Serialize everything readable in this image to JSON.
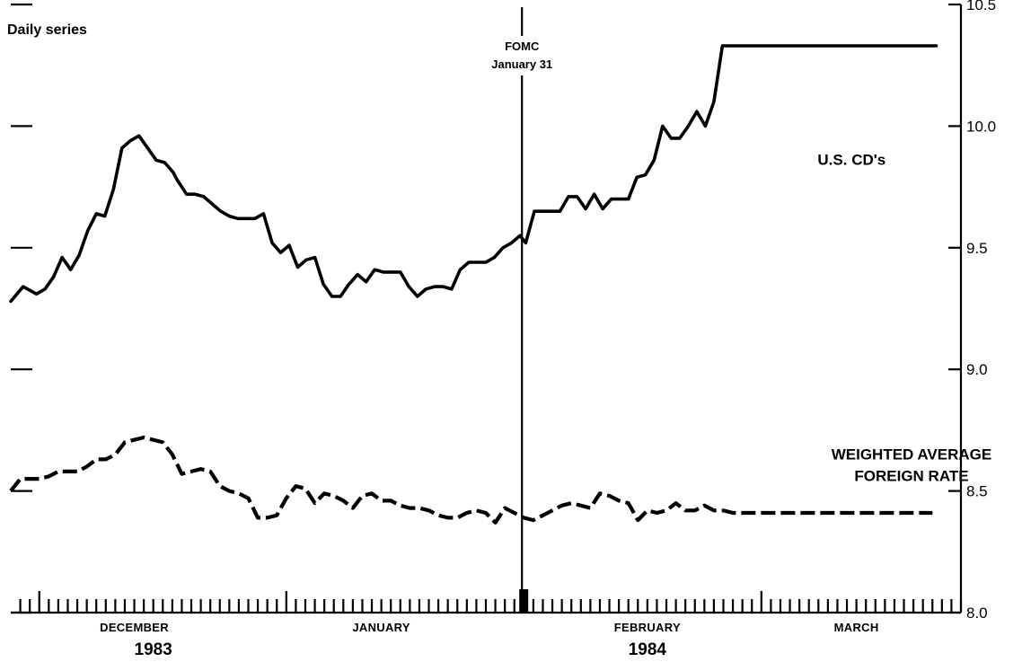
{
  "chart_data": {
    "type": "line",
    "title": "",
    "subtitle": "Daily series",
    "xlabel": "",
    "ylabel": "",
    "ylim": [
      8.0,
      10.5
    ],
    "yticks": [
      8.0,
      8.5,
      9.0,
      9.5,
      10.0,
      10.5
    ],
    "ytick_labels": [
      "8.0",
      "8.5",
      "9.0",
      "9.5",
      "10.0",
      "10.5"
    ],
    "y_axis_side": "right",
    "grid": false,
    "x_unit": "business days",
    "xlim": [
      0,
      100
    ],
    "month_labels": [
      {
        "label": "DECEMBER",
        "x": 13
      },
      {
        "label": "JANUARY",
        "x": 39
      },
      {
        "label": "FEBRUARY",
        "x": 67
      },
      {
        "label": "MARCH",
        "x": 89
      }
    ],
    "year_labels": [
      {
        "label": "1983",
        "x": 15
      },
      {
        "label": "1984",
        "x": 67
      }
    ],
    "major_ticks": [
      3,
      29,
      54,
      79
    ],
    "annotation": {
      "line1": "FOMC",
      "line2": "January 31",
      "x": 53.8
    },
    "series": [
      {
        "name": "U.S. CD's",
        "style": "solid",
        "label_lines": [
          "U.S. CD's"
        ],
        "label_anchor": {
          "x": 88.5,
          "y": 9.84
        },
        "x": [
          0,
          1.3,
          2.7,
          3.6,
          4.5,
          5.4,
          6.3,
          7.2,
          8.1,
          9,
          9.9,
          10.8,
          11.7,
          12.6,
          13.5,
          14.4,
          15.3,
          16.2,
          17.1,
          17.5,
          18.5,
          19.4,
          20.3,
          21.2,
          22.1,
          23,
          23.9,
          24.8,
          25.7,
          26.6,
          27.5,
          28.4,
          29.3,
          30.2,
          31.1,
          32,
          32.9,
          33.8,
          34.7,
          35.6,
          36.5,
          37.4,
          38.3,
          39.2,
          40.1,
          41,
          41.9,
          42.8,
          43.7,
          44.6,
          45.5,
          46.4,
          47.3,
          48.2,
          49.1,
          50,
          50.9,
          51.8,
          52.7,
          53.6,
          54.2,
          55.1,
          56,
          56.9,
          57.8,
          58.7,
          59.6,
          60.5,
          61.4,
          62.3,
          63.2,
          64.1,
          65,
          65.9,
          66.8,
          67.7,
          68.6,
          69.5,
          70.4,
          71.3,
          72.2,
          73.1,
          74,
          74.9,
          75.8,
          76.7,
          77.6,
          78.5,
          79.4,
          80.3,
          81.2,
          82.1,
          83,
          83.9,
          84.8,
          85.7,
          86.6,
          87.5,
          88.4,
          89.3,
          90.2,
          91.1,
          92,
          92.9,
          93.8,
          94.7,
          95.6,
          96.5,
          97.4
        ],
        "values": [
          9.28,
          9.34,
          9.31,
          9.33,
          9.38,
          9.46,
          9.41,
          9.47,
          9.57,
          9.64,
          9.63,
          9.74,
          9.91,
          9.94,
          9.96,
          9.91,
          9.86,
          9.85,
          9.81,
          9.78,
          9.72,
          9.72,
          9.71,
          9.68,
          9.65,
          9.63,
          9.62,
          9.62,
          9.62,
          9.64,
          9.52,
          9.48,
          9.51,
          9.42,
          9.45,
          9.46,
          9.35,
          9.3,
          9.3,
          9.35,
          9.39,
          9.36,
          9.41,
          9.4,
          9.4,
          9.4,
          9.34,
          9.3,
          9.33,
          9.34,
          9.34,
          9.33,
          9.41,
          9.44,
          9.44,
          9.44,
          9.46,
          9.5,
          9.52,
          9.55,
          9.52,
          9.65,
          9.65,
          9.65,
          9.65,
          9.71,
          9.71,
          9.66,
          9.72,
          9.66,
          9.7,
          9.7,
          9.7,
          9.79,
          9.8,
          9.86,
          10.0,
          9.95,
          9.95,
          10.0,
          10.06,
          10.0,
          10.1,
          10.33,
          10.33,
          10.33,
          10.33,
          10.33,
          10.33,
          10.33,
          10.33,
          10.33,
          10.33,
          10.33,
          10.33,
          10.33,
          10.33,
          10.33,
          10.33,
          10.33,
          10.33,
          10.33,
          10.33,
          10.33,
          10.33,
          10.33,
          10.33,
          10.33,
          10.33
        ]
      },
      {
        "name": "WEIGHTED AVERAGE FOREIGN RATE",
        "style": "dashed",
        "label_lines": [
          "WEIGHTED AVERAGE",
          "FOREIGN RATE"
        ],
        "label_anchor": {
          "x": 94.8,
          "y": 8.63
        },
        "x": [
          0,
          1,
          2,
          3,
          4,
          5,
          6,
          7,
          8,
          9,
          10,
          11,
          12,
          13,
          14,
          15,
          16,
          17,
          18,
          19,
          20,
          21,
          22,
          23,
          24,
          25,
          26,
          27,
          28,
          29,
          30,
          31,
          32,
          33,
          34,
          35,
          36,
          37,
          38,
          39,
          40,
          41,
          42,
          43,
          44,
          45,
          46,
          47,
          48,
          49,
          50,
          51,
          52,
          53,
          54,
          55,
          56,
          57,
          58,
          59,
          60,
          61,
          62,
          63,
          64,
          65,
          66,
          67,
          68,
          69,
          70,
          71,
          72,
          73,
          74,
          75,
          76,
          77,
          78,
          79,
          80,
          81,
          82,
          83,
          84,
          85,
          86,
          87,
          88,
          89,
          90,
          91,
          92,
          93,
          94,
          95,
          96,
          97
        ],
        "values": [
          8.5,
          8.55,
          8.55,
          8.55,
          8.56,
          8.58,
          8.58,
          8.58,
          8.6,
          8.63,
          8.63,
          8.65,
          8.7,
          8.71,
          8.72,
          8.71,
          8.7,
          8.65,
          8.57,
          8.58,
          8.59,
          8.58,
          8.52,
          8.5,
          8.49,
          8.47,
          8.39,
          8.39,
          8.4,
          8.47,
          8.52,
          8.51,
          8.45,
          8.49,
          8.48,
          8.46,
          8.43,
          8.48,
          8.49,
          8.46,
          8.46,
          8.44,
          8.43,
          8.43,
          8.42,
          8.4,
          8.39,
          8.39,
          8.41,
          8.42,
          8.41,
          8.37,
          8.43,
          8.41,
          8.39,
          8.38,
          8.4,
          8.42,
          8.44,
          8.45,
          8.44,
          8.43,
          8.49,
          8.48,
          8.46,
          8.45,
          8.38,
          8.42,
          8.41,
          8.42,
          8.45,
          8.42,
          8.42,
          8.44,
          8.42,
          8.42,
          8.41,
          8.41,
          8.41,
          8.41,
          8.41,
          8.41,
          8.41,
          8.41,
          8.41,
          8.41,
          8.41,
          8.41,
          8.41,
          8.41,
          8.41,
          8.41,
          8.41,
          8.41,
          8.41,
          8.41,
          8.41,
          8.41
        ]
      }
    ]
  }
}
